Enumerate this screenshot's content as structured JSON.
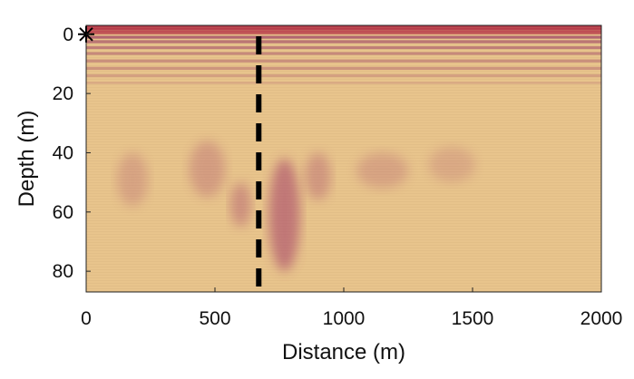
{
  "chart_data": {
    "type": "heatmap",
    "title": "",
    "xlabel": "Distance (m)",
    "ylabel": "Depth (m)",
    "xlim": [
      0,
      2000
    ],
    "ylim": [
      0,
      87
    ],
    "y_inverted": true,
    "x_ticks": [
      0,
      500,
      1000,
      1500,
      2000
    ],
    "x_tick_labels": [
      "0",
      "500",
      "1000",
      "1500",
      "2000"
    ],
    "y_ticks": [
      0,
      20,
      40,
      60,
      80
    ],
    "y_tick_labels": [
      "0",
      "20",
      "40",
      "60",
      "80"
    ],
    "colors": {
      "background": "#e8c48c",
      "surface_band": "#b73a4a",
      "layer_band": "#a44d6a",
      "anomaly": "#a8476a",
      "dashed_line": "#000000"
    },
    "surface_layers": [
      {
        "depth_top": -3,
        "depth_bottom": -1.5,
        "intensity": 1.0
      },
      {
        "depth_top": -1.5,
        "depth_bottom": 0,
        "intensity": 0.85
      },
      {
        "depth_top": 0.5,
        "depth_bottom": 1.5,
        "intensity": 0.8
      },
      {
        "depth_top": 2,
        "depth_bottom": 3,
        "intensity": 0.7
      },
      {
        "depth_top": 4,
        "depth_bottom": 5,
        "intensity": 0.6
      },
      {
        "depth_top": 6,
        "depth_bottom": 7,
        "intensity": 0.5
      },
      {
        "depth_top": 8.5,
        "depth_bottom": 9.5,
        "intensity": 0.45
      },
      {
        "depth_top": 11,
        "depth_bottom": 12,
        "intensity": 0.4
      },
      {
        "depth_top": 13.5,
        "depth_bottom": 14.5,
        "intensity": 0.3
      },
      {
        "depth_top": 16,
        "depth_bottom": 16.8,
        "intensity": 0.2
      }
    ],
    "anomalies": [
      {
        "x": 180,
        "depth_top": 40,
        "depth_bottom": 58,
        "width": 120,
        "intensity": 0.25
      },
      {
        "x": 470,
        "depth_top": 36,
        "depth_bottom": 55,
        "width": 140,
        "intensity": 0.3
      },
      {
        "x": 600,
        "depth_top": 50,
        "depth_bottom": 65,
        "width": 80,
        "intensity": 0.4
      },
      {
        "x": 770,
        "depth_top": 42,
        "depth_bottom": 80,
        "width": 120,
        "intensity": 0.6
      },
      {
        "x": 900,
        "depth_top": 40,
        "depth_bottom": 56,
        "width": 100,
        "intensity": 0.35
      },
      {
        "x": 1150,
        "depth_top": 40,
        "depth_bottom": 52,
        "width": 200,
        "intensity": 0.25
      },
      {
        "x": 1420,
        "depth_top": 38,
        "depth_bottom": 50,
        "width": 180,
        "intensity": 0.2
      }
    ],
    "dashed_line_x": 670,
    "source_marker": {
      "x": 0,
      "y": 0,
      "symbol": "asterisk"
    }
  }
}
